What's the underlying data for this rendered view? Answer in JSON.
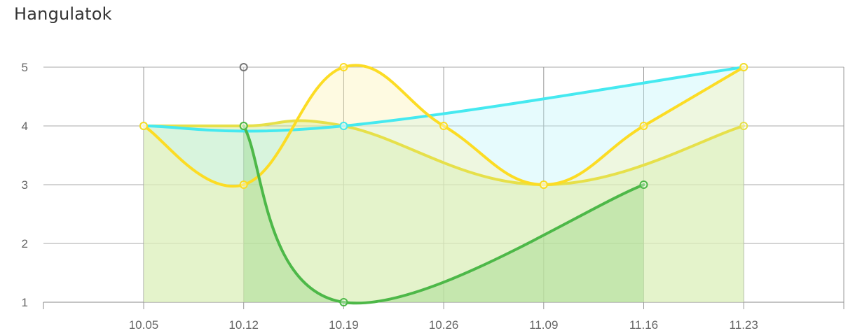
{
  "title": "Hangulatok",
  "chart_data": {
    "type": "area",
    "categories": [
      "10.05",
      "10.12",
      "10.19",
      "10.26",
      "11.09",
      "11.16",
      "11.23"
    ],
    "ylim": [
      1,
      5
    ],
    "yticks": [
      "1",
      "2",
      "3",
      "4",
      "5"
    ],
    "grid": true,
    "series": [
      {
        "values": [
          null,
          5,
          null,
          null,
          null,
          null,
          null
        ],
        "color": "#777777",
        "fill": "rgba(0,0,0,0)"
      },
      {
        "values": [
          null,
          4,
          1,
          null,
          null,
          3,
          null
        ],
        "color": "#4db848",
        "fill": "rgba(120,200,100,0.28)"
      },
      {
        "values": [
          4,
          3,
          5,
          4,
          3,
          4,
          5
        ],
        "color": "#fcdc24",
        "fill": "rgba(252,240,170,0.35)"
      },
      {
        "values": [
          4,
          null,
          4,
          null,
          null,
          null,
          5
        ],
        "color": "#45e9f0",
        "fill": "rgba(190,245,250,0.38)"
      },
      {
        "values": [
          4,
          4,
          4,
          null,
          3,
          null,
          4
        ],
        "color": "#e6e04a",
        "fill": "rgba(200,228,130,0.42)"
      }
    ]
  }
}
